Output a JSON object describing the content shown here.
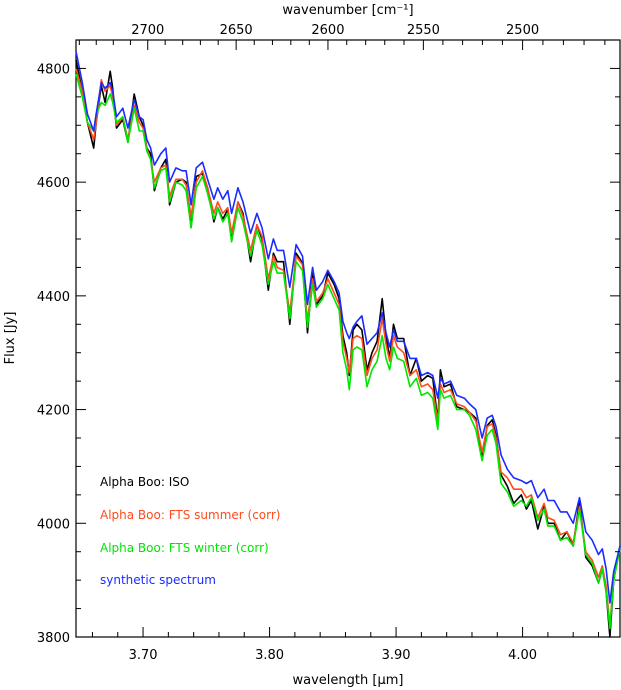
{
  "chart_data": {
    "type": "line",
    "title": "",
    "xlabel": "wavelength [μm]",
    "x2label": "wavenumber [cm⁻¹]",
    "ylabel": "Flux [Jy]",
    "xlim": [
      3.647,
      4.077
    ],
    "ylim": [
      3800,
      4850
    ],
    "x_ticks": [
      3.7,
      3.8,
      3.9,
      4.0
    ],
    "x_tick_labels": [
      "3.70",
      "3.80",
      "3.90",
      "4.00"
    ],
    "y_ticks": [
      3800,
      4000,
      4200,
      4400,
      4600,
      4800
    ],
    "y_tick_labels": [
      "3800",
      "4000",
      "4200",
      "4400",
      "4600",
      "4800"
    ],
    "top_ticks": [
      2700,
      2650,
      2600,
      2550,
      2500
    ],
    "top_tick_labels": [
      "2700",
      "2650",
      "2600",
      "2550",
      "2500"
    ],
    "grid": false,
    "legend_position": "lower-left",
    "series": [
      {
        "name": "Alpha Boo: ISO",
        "color": "#000000",
        "x": [
          3.647,
          3.652,
          3.656,
          3.661,
          3.663,
          3.667,
          3.67,
          3.674,
          3.676,
          3.679,
          3.684,
          3.688,
          3.693,
          3.697,
          3.7,
          3.703,
          3.706,
          3.709,
          3.714,
          3.718,
          3.721,
          3.726,
          3.731,
          3.734,
          3.738,
          3.742,
          3.747,
          3.751,
          3.756,
          3.759,
          3.763,
          3.767,
          3.77,
          3.775,
          3.779,
          3.785,
          3.79,
          3.794,
          3.799,
          3.803,
          3.806,
          3.811,
          3.816,
          3.821,
          3.826,
          3.83,
          3.834,
          3.837,
          3.842,
          3.846,
          3.851,
          3.855,
          3.858,
          3.861,
          3.863,
          3.866,
          3.869,
          3.873,
          3.877,
          3.881,
          3.885,
          3.889,
          3.892,
          3.895,
          3.898,
          3.901,
          3.906,
          3.911,
          3.916,
          3.92,
          3.925,
          3.929,
          3.933,
          3.935,
          3.938,
          3.943,
          3.948,
          3.954,
          3.958,
          3.963,
          3.968,
          3.972,
          3.976,
          3.979,
          3.983,
          3.988,
          3.993,
          3.999,
          4.003,
          4.007,
          4.012,
          4.017,
          4.02,
          4.025,
          4.03,
          4.035,
          4.04,
          4.045,
          4.05,
          4.055,
          4.06,
          4.063,
          4.066,
          4.069,
          4.072,
          4.077
        ],
        "values": [
          4815,
          4760,
          4705,
          4660,
          4705,
          4770,
          4740,
          4795,
          4765,
          4695,
          4710,
          4670,
          4755,
          4715,
          4700,
          4660,
          4650,
          4585,
          4625,
          4640,
          4560,
          4600,
          4605,
          4600,
          4520,
          4610,
          4615,
          4590,
          4530,
          4555,
          4535,
          4552,
          4500,
          4565,
          4545,
          4460,
          4525,
          4500,
          4410,
          4475,
          4460,
          4460,
          4350,
          4475,
          4458,
          4335,
          4440,
          4385,
          4400,
          4440,
          4420,
          4395,
          4330,
          4300,
          4260,
          4340,
          4350,
          4340,
          4270,
          4300,
          4320,
          4395,
          4330,
          4290,
          4350,
          4325,
          4325,
          4260,
          4290,
          4250,
          4260,
          4255,
          4180,
          4270,
          4240,
          4245,
          4205,
          4200,
          4195,
          4185,
          4115,
          4172,
          4182,
          4155,
          4085,
          4065,
          4035,
          4050,
          4025,
          4040,
          3990,
          4030,
          4000,
          4000,
          3970,
          3985,
          3960,
          4040,
          3940,
          3925,
          3895,
          3920,
          3880,
          3800,
          3900,
          3960
        ]
      },
      {
        "name": "Alpha Boo: FTS summer (corr)",
        "color": "#ff4b1e",
        "x": [
          3.647,
          3.652,
          3.656,
          3.661,
          3.663,
          3.667,
          3.67,
          3.674,
          3.676,
          3.679,
          3.684,
          3.688,
          3.693,
          3.697,
          3.7,
          3.703,
          3.706,
          3.709,
          3.714,
          3.718,
          3.721,
          3.726,
          3.731,
          3.734,
          3.738,
          3.742,
          3.747,
          3.751,
          3.756,
          3.759,
          3.763,
          3.767,
          3.77,
          3.775,
          3.779,
          3.785,
          3.79,
          3.794,
          3.799,
          3.803,
          3.806,
          3.811,
          3.816,
          3.821,
          3.826,
          3.83,
          3.834,
          3.837,
          3.842,
          3.846,
          3.851,
          3.855,
          3.858,
          3.861,
          3.863,
          3.866,
          3.869,
          3.873,
          3.877,
          3.881,
          3.885,
          3.889,
          3.892,
          3.895,
          3.898,
          3.901,
          3.906,
          3.911,
          3.916,
          3.92,
          3.925,
          3.929,
          3.933,
          3.935,
          3.938,
          3.943,
          3.948,
          3.954,
          3.958,
          3.963,
          3.968,
          3.972,
          3.976,
          3.979,
          3.983,
          3.988,
          3.993,
          3.999,
          4.003,
          4.007,
          4.012,
          4.017,
          4.02,
          4.025,
          4.03,
          4.035,
          4.04,
          4.045,
          4.05,
          4.055,
          4.06,
          4.063,
          4.066,
          4.069,
          4.072,
          4.077
        ],
        "values": [
          4800,
          4760,
          4705,
          4675,
          4705,
          4780,
          4760,
          4770,
          4750,
          4700,
          4715,
          4675,
          4735,
          4705,
          4695,
          4660,
          4640,
          4600,
          4625,
          4630,
          4575,
          4605,
          4605,
          4595,
          4540,
          4600,
          4620,
          4590,
          4545,
          4565,
          4545,
          4555,
          4510,
          4565,
          4540,
          4480,
          4525,
          4505,
          4430,
          4470,
          4450,
          4445,
          4370,
          4470,
          4455,
          4355,
          4430,
          4390,
          4405,
          4430,
          4405,
          4385,
          4320,
          4290,
          4265,
          4325,
          4330,
          4325,
          4260,
          4290,
          4305,
          4360,
          4315,
          4285,
          4330,
          4310,
          4300,
          4260,
          4270,
          4240,
          4245,
          4235,
          4180,
          4245,
          4230,
          4235,
          4210,
          4205,
          4195,
          4180,
          4125,
          4170,
          4175,
          4150,
          4090,
          4080,
          4060,
          4060,
          4045,
          4050,
          4010,
          4035,
          4010,
          4005,
          3980,
          3985,
          3965,
          4030,
          3950,
          3935,
          3905,
          3925,
          3890,
          3820,
          3905,
          3955
        ]
      },
      {
        "name": "Alpha Boo: FTS winter (corr)",
        "color": "#00e600",
        "x": [
          3.647,
          3.652,
          3.656,
          3.661,
          3.663,
          3.667,
          3.67,
          3.674,
          3.676,
          3.679,
          3.684,
          3.688,
          3.693,
          3.697,
          3.7,
          3.703,
          3.706,
          3.709,
          3.714,
          3.718,
          3.721,
          3.726,
          3.731,
          3.734,
          3.738,
          3.742,
          3.747,
          3.751,
          3.756,
          3.759,
          3.763,
          3.767,
          3.77,
          3.775,
          3.779,
          3.785,
          3.79,
          3.794,
          3.799,
          3.803,
          3.806,
          3.811,
          3.816,
          3.821,
          3.826,
          3.83,
          3.834,
          3.837,
          3.842,
          3.846,
          3.851,
          3.855,
          3.858,
          3.861,
          3.863,
          3.866,
          3.869,
          3.873,
          3.877,
          3.881,
          3.885,
          3.889,
          3.892,
          3.895,
          3.898,
          3.901,
          3.906,
          3.911,
          3.916,
          3.92,
          3.925,
          3.929,
          3.933,
          3.935,
          3.938,
          3.943,
          3.948,
          3.954,
          3.958,
          3.963,
          3.968,
          3.972,
          3.976,
          3.979,
          3.983,
          3.988,
          3.993,
          3.999,
          4.003,
          4.007,
          4.012,
          4.017,
          4.02,
          4.025,
          4.03,
          4.035,
          4.04,
          4.045,
          4.05,
          4.055,
          4.06,
          4.063,
          4.066,
          4.069,
          4.072,
          4.077
        ],
        "values": [
          4790,
          4750,
          4705,
          4690,
          4720,
          4740,
          4735,
          4755,
          4740,
          4705,
          4715,
          4670,
          4730,
          4690,
          4690,
          4655,
          4640,
          4590,
          4620,
          4625,
          4565,
          4600,
          4595,
          4585,
          4520,
          4590,
          4610,
          4580,
          4535,
          4555,
          4530,
          4545,
          4495,
          4555,
          4530,
          4470,
          4515,
          4490,
          4420,
          4460,
          4440,
          4440,
          4360,
          4460,
          4445,
          4345,
          4420,
          4380,
          4395,
          4420,
          4395,
          4375,
          4300,
          4270,
          4235,
          4305,
          4310,
          4305,
          4240,
          4270,
          4285,
          4330,
          4290,
          4270,
          4310,
          4290,
          4285,
          4240,
          4255,
          4225,
          4230,
          4220,
          4165,
          4235,
          4220,
          4225,
          4200,
          4200,
          4190,
          4165,
          4110,
          4155,
          4165,
          4140,
          4070,
          4055,
          4030,
          4040,
          4030,
          4045,
          4005,
          4025,
          3995,
          3995,
          3970,
          3975,
          3960,
          4025,
          3945,
          3930,
          3895,
          3920,
          3880,
          3815,
          3900,
          3955
        ]
      },
      {
        "name": "synthetic spectrum",
        "color": "#1a2cff",
        "x": [
          3.647,
          3.652,
          3.656,
          3.661,
          3.663,
          3.667,
          3.67,
          3.674,
          3.676,
          3.679,
          3.684,
          3.688,
          3.693,
          3.697,
          3.7,
          3.703,
          3.706,
          3.709,
          3.714,
          3.718,
          3.721,
          3.726,
          3.731,
          3.734,
          3.738,
          3.742,
          3.747,
          3.751,
          3.756,
          3.759,
          3.763,
          3.767,
          3.77,
          3.775,
          3.779,
          3.785,
          3.79,
          3.794,
          3.799,
          3.803,
          3.806,
          3.811,
          3.816,
          3.821,
          3.826,
          3.83,
          3.834,
          3.837,
          3.842,
          3.846,
          3.851,
          3.855,
          3.858,
          3.861,
          3.863,
          3.866,
          3.869,
          3.873,
          3.877,
          3.881,
          3.885,
          3.889,
          3.892,
          3.895,
          3.898,
          3.901,
          3.906,
          3.911,
          3.916,
          3.92,
          3.925,
          3.929,
          3.933,
          3.935,
          3.938,
          3.943,
          3.948,
          3.954,
          3.958,
          3.963,
          3.968,
          3.972,
          3.976,
          3.979,
          3.983,
          3.988,
          3.993,
          3.999,
          4.003,
          4.007,
          4.012,
          4.017,
          4.02,
          4.025,
          4.03,
          4.035,
          4.04,
          4.045,
          4.05,
          4.055,
          4.06,
          4.063,
          4.066,
          4.069,
          4.072,
          4.077
        ],
        "values": [
          4830,
          4775,
          4720,
          4690,
          4720,
          4775,
          4765,
          4775,
          4760,
          4715,
          4730,
          4695,
          4745,
          4715,
          4710,
          4675,
          4660,
          4630,
          4650,
          4660,
          4600,
          4625,
          4620,
          4620,
          4560,
          4625,
          4635,
          4605,
          4570,
          4590,
          4570,
          4585,
          4545,
          4590,
          4565,
          4510,
          4545,
          4520,
          4465,
          4500,
          4480,
          4480,
          4415,
          4490,
          4470,
          4385,
          4450,
          4410,
          4425,
          4445,
          4425,
          4405,
          4355,
          4335,
          4325,
          4345,
          4355,
          4365,
          4315,
          4325,
          4335,
          4370,
          4335,
          4310,
          4340,
          4320,
          4320,
          4290,
          4290,
          4260,
          4265,
          4260,
          4220,
          4255,
          4245,
          4250,
          4225,
          4220,
          4210,
          4200,
          4150,
          4185,
          4190,
          4170,
          4120,
          4095,
          4080,
          4075,
          4070,
          4075,
          4045,
          4060,
          4040,
          4040,
          4020,
          4020,
          4000,
          4045,
          3985,
          3970,
          3945,
          3955,
          3920,
          3860,
          3915,
          3960
        ]
      }
    ]
  }
}
